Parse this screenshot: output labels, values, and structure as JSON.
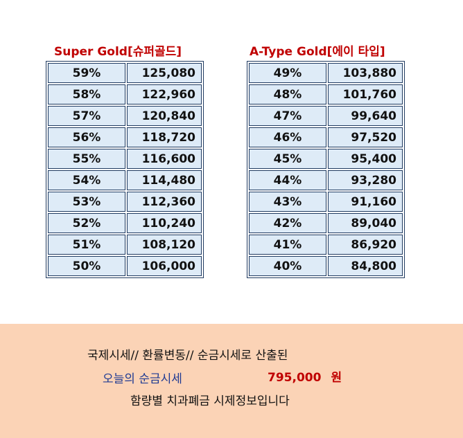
{
  "tables": [
    {
      "title": "Super Gold[슈퍼골드]",
      "rows": [
        {
          "pct": "59%",
          "price": "125,080"
        },
        {
          "pct": "58%",
          "price": "122,960"
        },
        {
          "pct": "57%",
          "price": "120,840"
        },
        {
          "pct": "56%",
          "price": "118,720"
        },
        {
          "pct": "55%",
          "price": "116,600"
        },
        {
          "pct": "54%",
          "price": "114,480"
        },
        {
          "pct": "53%",
          "price": "112,360"
        },
        {
          "pct": "52%",
          "price": "110,240"
        },
        {
          "pct": "51%",
          "price": "108,120"
        },
        {
          "pct": "50%",
          "price": "106,000"
        }
      ]
    },
    {
      "title": "A-Type Gold[에이 타입]",
      "rows": [
        {
          "pct": "49%",
          "price": "103,880"
        },
        {
          "pct": "48%",
          "price": "101,760"
        },
        {
          "pct": "47%",
          "price": "99,640"
        },
        {
          "pct": "46%",
          "price": "97,520"
        },
        {
          "pct": "45%",
          "price": "95,400"
        },
        {
          "pct": "44%",
          "price": "93,280"
        },
        {
          "pct": "43%",
          "price": "91,160"
        },
        {
          "pct": "42%",
          "price": "89,040"
        },
        {
          "pct": "41%",
          "price": "86,920"
        },
        {
          "pct": "40%",
          "price": "84,800"
        }
      ]
    }
  ],
  "notice": {
    "line1": "국제시세// 환률변동// 순금시세로 산출된",
    "today_label": "오늘의 순금시세",
    "today_value": "795,000",
    "today_unit": "원",
    "line3": "함량별 치과폐금 시제정보입니다"
  },
  "colors": {
    "title_red": "#c00000",
    "cell_fill": "#deebf7",
    "cell_border": "#1f3a60",
    "panel_bg": "#fbd3b6",
    "label_blue": "#1f3a93"
  }
}
